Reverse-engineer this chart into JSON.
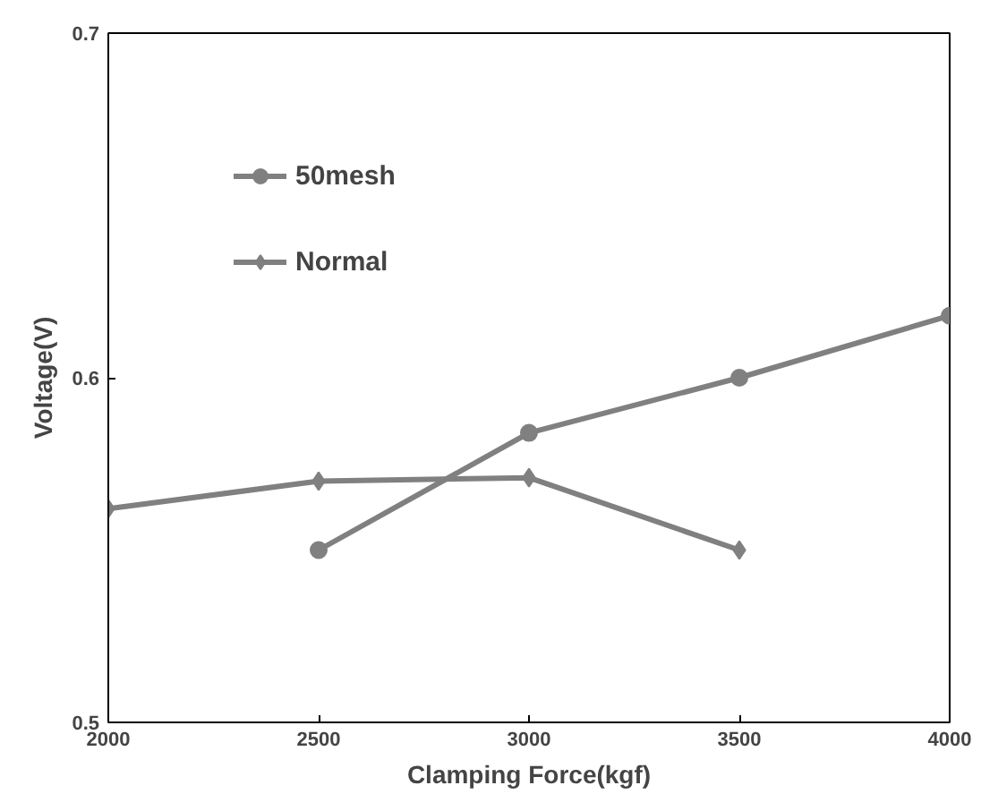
{
  "chart_data": {
    "type": "line",
    "xlabel": "Clamping Force(kgf)",
    "ylabel": "Voltage(V)",
    "xlim": [
      2000,
      4000
    ],
    "xticks": [
      2000,
      2500,
      3000,
      3500,
      4000
    ],
    "ylim": [
      0.5,
      0.7
    ],
    "yticks": [
      0.5,
      0.6,
      0.7
    ],
    "grid": false,
    "legend": "top left",
    "series": [
      {
        "name": "50mesh",
        "color": "#808080",
        "marker": "circle",
        "x": [
          2500,
          3000,
          3500,
          4000
        ],
        "values": [
          0.55,
          0.584,
          0.6,
          0.618
        ]
      },
      {
        "name": "Normal",
        "color": "#808080",
        "marker": "diamond",
        "x": [
          2000,
          2500,
          3000,
          3500
        ],
        "values": [
          0.562,
          0.57,
          0.571,
          0.55
        ]
      }
    ]
  }
}
